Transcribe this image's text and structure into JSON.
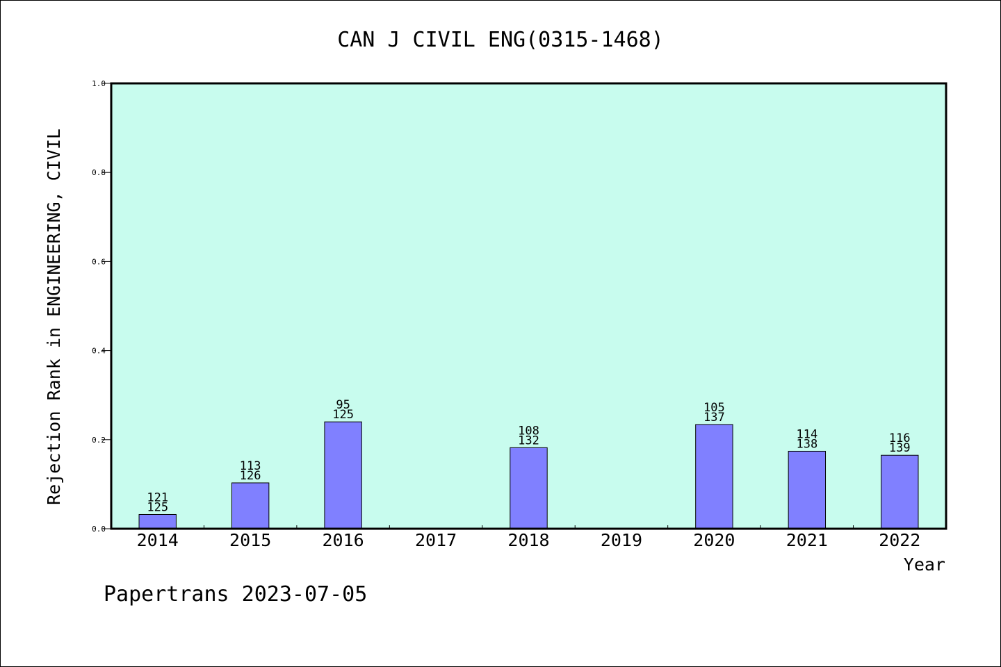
{
  "chart_data": {
    "type": "bar",
    "title": "CAN J CIVIL ENG(0315-1468)",
    "xlabel": "Year",
    "ylabel": "Rejection Rank in ENGINEERING, CIVIL",
    "ylim": [
      0.0,
      1.0
    ],
    "yticks": [
      "0.0",
      "0.2",
      "0.4",
      "0.6",
      "0.8",
      "1.0"
    ],
    "categories": [
      "2014",
      "2015",
      "2016",
      "2017",
      "2018",
      "2019",
      "2020",
      "2021",
      "2022"
    ],
    "values": [
      0.032,
      0.103,
      0.24,
      null,
      0.182,
      null,
      0.234,
      0.174,
      0.165
    ],
    "bar_labels": [
      [
        "121",
        "125"
      ],
      [
        "113",
        "126"
      ],
      [
        "95",
        "125"
      ],
      null,
      [
        "108",
        "132"
      ],
      null,
      [
        "105",
        "137"
      ],
      [
        "114",
        "138"
      ],
      [
        "116",
        "139"
      ]
    ],
    "grid": false,
    "colors": {
      "plot_background": "#c8fcee",
      "bar_fill": "#8080ff",
      "bar_stroke": "#000000"
    }
  },
  "footer": "Papertrans 2023-07-05"
}
